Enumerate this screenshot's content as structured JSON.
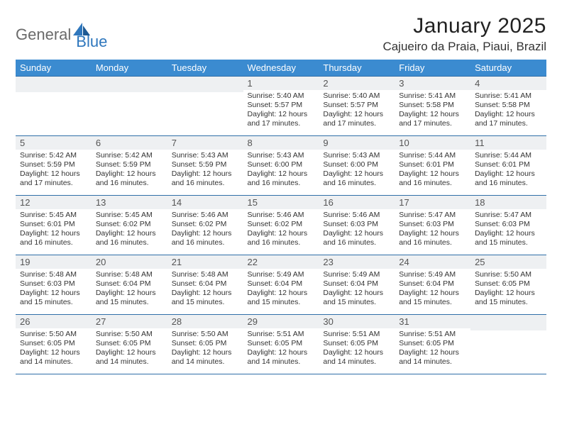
{
  "logo": {
    "text1": "General",
    "text2": "Blue"
  },
  "title": "January 2025",
  "location": "Cajueiro da Praia, Piaui, Brazil",
  "daynames": [
    "Sunday",
    "Monday",
    "Tuesday",
    "Wednesday",
    "Thursday",
    "Friday",
    "Saturday"
  ],
  "colors": {
    "header_bg": "#3b8bd0",
    "header_text": "#ffffff",
    "border": "#2f6fa8",
    "daynum_bg": "#eef0f2",
    "logo_gray": "#6a6a6a",
    "logo_blue": "#2f77bd"
  },
  "weeks": [
    [
      {
        "n": "",
        "sr": "",
        "ss": "",
        "dl": ""
      },
      {
        "n": "",
        "sr": "",
        "ss": "",
        "dl": ""
      },
      {
        "n": "",
        "sr": "",
        "ss": "",
        "dl": ""
      },
      {
        "n": "1",
        "sr": "5:40 AM",
        "ss": "5:57 PM",
        "dl": "12 hours and 17 minutes."
      },
      {
        "n": "2",
        "sr": "5:40 AM",
        "ss": "5:57 PM",
        "dl": "12 hours and 17 minutes."
      },
      {
        "n": "3",
        "sr": "5:41 AM",
        "ss": "5:58 PM",
        "dl": "12 hours and 17 minutes."
      },
      {
        "n": "4",
        "sr": "5:41 AM",
        "ss": "5:58 PM",
        "dl": "12 hours and 17 minutes."
      }
    ],
    [
      {
        "n": "5",
        "sr": "5:42 AM",
        "ss": "5:59 PM",
        "dl": "12 hours and 17 minutes."
      },
      {
        "n": "6",
        "sr": "5:42 AM",
        "ss": "5:59 PM",
        "dl": "12 hours and 16 minutes."
      },
      {
        "n": "7",
        "sr": "5:43 AM",
        "ss": "5:59 PM",
        "dl": "12 hours and 16 minutes."
      },
      {
        "n": "8",
        "sr": "5:43 AM",
        "ss": "6:00 PM",
        "dl": "12 hours and 16 minutes."
      },
      {
        "n": "9",
        "sr": "5:43 AM",
        "ss": "6:00 PM",
        "dl": "12 hours and 16 minutes."
      },
      {
        "n": "10",
        "sr": "5:44 AM",
        "ss": "6:01 PM",
        "dl": "12 hours and 16 minutes."
      },
      {
        "n": "11",
        "sr": "5:44 AM",
        "ss": "6:01 PM",
        "dl": "12 hours and 16 minutes."
      }
    ],
    [
      {
        "n": "12",
        "sr": "5:45 AM",
        "ss": "6:01 PM",
        "dl": "12 hours and 16 minutes."
      },
      {
        "n": "13",
        "sr": "5:45 AM",
        "ss": "6:02 PM",
        "dl": "12 hours and 16 minutes."
      },
      {
        "n": "14",
        "sr": "5:46 AM",
        "ss": "6:02 PM",
        "dl": "12 hours and 16 minutes."
      },
      {
        "n": "15",
        "sr": "5:46 AM",
        "ss": "6:02 PM",
        "dl": "12 hours and 16 minutes."
      },
      {
        "n": "16",
        "sr": "5:46 AM",
        "ss": "6:03 PM",
        "dl": "12 hours and 16 minutes."
      },
      {
        "n": "17",
        "sr": "5:47 AM",
        "ss": "6:03 PM",
        "dl": "12 hours and 16 minutes."
      },
      {
        "n": "18",
        "sr": "5:47 AM",
        "ss": "6:03 PM",
        "dl": "12 hours and 15 minutes."
      }
    ],
    [
      {
        "n": "19",
        "sr": "5:48 AM",
        "ss": "6:03 PM",
        "dl": "12 hours and 15 minutes."
      },
      {
        "n": "20",
        "sr": "5:48 AM",
        "ss": "6:04 PM",
        "dl": "12 hours and 15 minutes."
      },
      {
        "n": "21",
        "sr": "5:48 AM",
        "ss": "6:04 PM",
        "dl": "12 hours and 15 minutes."
      },
      {
        "n": "22",
        "sr": "5:49 AM",
        "ss": "6:04 PM",
        "dl": "12 hours and 15 minutes."
      },
      {
        "n": "23",
        "sr": "5:49 AM",
        "ss": "6:04 PM",
        "dl": "12 hours and 15 minutes."
      },
      {
        "n": "24",
        "sr": "5:49 AM",
        "ss": "6:04 PM",
        "dl": "12 hours and 15 minutes."
      },
      {
        "n": "25",
        "sr": "5:50 AM",
        "ss": "6:05 PM",
        "dl": "12 hours and 15 minutes."
      }
    ],
    [
      {
        "n": "26",
        "sr": "5:50 AM",
        "ss": "6:05 PM",
        "dl": "12 hours and 14 minutes."
      },
      {
        "n": "27",
        "sr": "5:50 AM",
        "ss": "6:05 PM",
        "dl": "12 hours and 14 minutes."
      },
      {
        "n": "28",
        "sr": "5:50 AM",
        "ss": "6:05 PM",
        "dl": "12 hours and 14 minutes."
      },
      {
        "n": "29",
        "sr": "5:51 AM",
        "ss": "6:05 PM",
        "dl": "12 hours and 14 minutes."
      },
      {
        "n": "30",
        "sr": "5:51 AM",
        "ss": "6:05 PM",
        "dl": "12 hours and 14 minutes."
      },
      {
        "n": "31",
        "sr": "5:51 AM",
        "ss": "6:05 PM",
        "dl": "12 hours and 14 minutes."
      },
      {
        "n": "",
        "sr": "",
        "ss": "",
        "dl": ""
      }
    ]
  ],
  "labels": {
    "sunrise": "Sunrise:",
    "sunset": "Sunset:",
    "daylight": "Daylight:"
  }
}
